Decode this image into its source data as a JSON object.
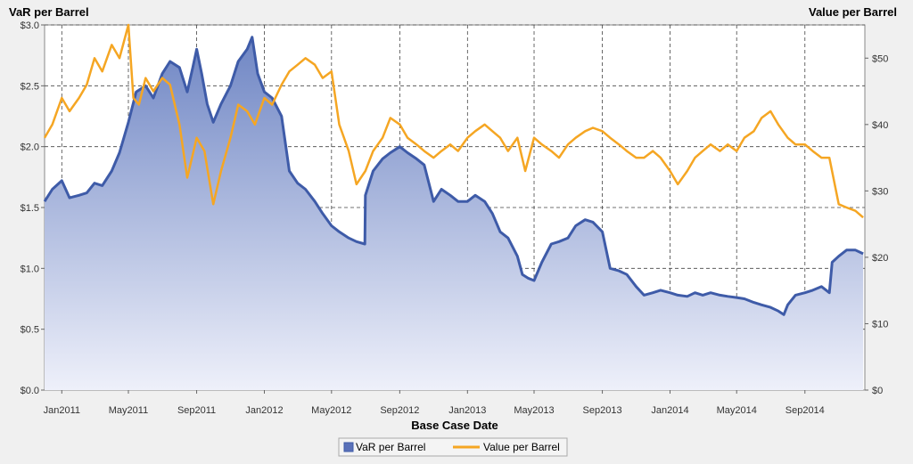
{
  "chart_data": {
    "type": "area",
    "xlabel": "Base Case Date",
    "ylabel_left": "VaR per Barrel",
    "ylabel_right": "Value per Barrel",
    "ylim_left": [
      0,
      3.0
    ],
    "ylim_right": [
      0,
      55
    ],
    "xlim": [
      "2010-12-01",
      "2014-12-18"
    ],
    "grid": true,
    "legend_position": "bottom-center",
    "y_ticks_left": [
      "$0.0",
      "$0.5",
      "$1.0",
      "$1.5",
      "$2.0",
      "$2.5",
      "$3.0"
    ],
    "y_ticks_right": [
      "$0",
      "$10",
      "$20",
      "$30",
      "$40",
      "$50"
    ],
    "x_ticks": [
      {
        "date": "2011-01-01",
        "label": "Jan2011"
      },
      {
        "date": "2011-05-01",
        "label": "May2011"
      },
      {
        "date": "2011-09-01",
        "label": "Sep2011"
      },
      {
        "date": "2012-01-01",
        "label": "Jan2012"
      },
      {
        "date": "2012-05-01",
        "label": "May2012"
      },
      {
        "date": "2012-09-01",
        "label": "Sep2012"
      },
      {
        "date": "2013-01-01",
        "label": "Jan2013"
      },
      {
        "date": "2013-05-01",
        "label": "May2013"
      },
      {
        "date": "2013-09-01",
        "label": "Sep2013"
      },
      {
        "date": "2014-01-01",
        "label": "Jan2014"
      },
      {
        "date": "2014-05-01",
        "label": "May2014"
      },
      {
        "date": "2014-09-01",
        "label": "Sep2014"
      }
    ],
    "series": [
      {
        "name": "VaR per Barrel",
        "axis": "left",
        "style": "area",
        "color": "#3e5ba8",
        "points": [
          [
            "2010-12-01",
            1.55
          ],
          [
            "2010-12-15",
            1.65
          ],
          [
            "2011-01-01",
            1.72
          ],
          [
            "2011-01-15",
            1.58
          ],
          [
            "2011-02-01",
            1.6
          ],
          [
            "2011-02-15",
            1.62
          ],
          [
            "2011-03-01",
            1.7
          ],
          [
            "2011-03-15",
            1.68
          ],
          [
            "2011-04-01",
            1.8
          ],
          [
            "2011-04-15",
            1.95
          ],
          [
            "2011-05-01",
            2.2
          ],
          [
            "2011-05-15",
            2.45
          ],
          [
            "2011-06-01",
            2.5
          ],
          [
            "2011-06-15",
            2.4
          ],
          [
            "2011-07-01",
            2.6
          ],
          [
            "2011-07-15",
            2.7
          ],
          [
            "2011-08-01",
            2.65
          ],
          [
            "2011-08-15",
            2.45
          ],
          [
            "2011-08-25",
            2.65
          ],
          [
            "2011-09-01",
            2.8
          ],
          [
            "2011-09-10",
            2.6
          ],
          [
            "2011-09-20",
            2.35
          ],
          [
            "2011-10-01",
            2.2
          ],
          [
            "2011-10-15",
            2.35
          ],
          [
            "2011-11-01",
            2.5
          ],
          [
            "2011-11-15",
            2.7
          ],
          [
            "2011-12-01",
            2.8
          ],
          [
            "2011-12-10",
            2.9
          ],
          [
            "2011-12-20",
            2.6
          ],
          [
            "2012-01-01",
            2.45
          ],
          [
            "2012-01-15",
            2.4
          ],
          [
            "2012-02-01",
            2.25
          ],
          [
            "2012-02-15",
            1.8
          ],
          [
            "2012-03-01",
            1.7
          ],
          [
            "2012-03-15",
            1.65
          ],
          [
            "2012-04-01",
            1.55
          ],
          [
            "2012-04-15",
            1.45
          ],
          [
            "2012-05-01",
            1.35
          ],
          [
            "2012-05-15",
            1.3
          ],
          [
            "2012-06-01",
            1.25
          ],
          [
            "2012-06-15",
            1.22
          ],
          [
            "2012-06-30",
            1.2
          ],
          [
            "2012-07-01",
            1.6
          ],
          [
            "2012-07-15",
            1.8
          ],
          [
            "2012-08-01",
            1.9
          ],
          [
            "2012-08-15",
            1.95
          ],
          [
            "2012-09-01",
            2.0
          ],
          [
            "2012-09-15",
            1.95
          ],
          [
            "2012-10-01",
            1.9
          ],
          [
            "2012-10-15",
            1.85
          ],
          [
            "2012-11-01",
            1.55
          ],
          [
            "2012-11-15",
            1.65
          ],
          [
            "2012-12-01",
            1.6
          ],
          [
            "2012-12-15",
            1.55
          ],
          [
            "2013-01-01",
            1.55
          ],
          [
            "2013-01-15",
            1.6
          ],
          [
            "2013-02-01",
            1.55
          ],
          [
            "2013-02-15",
            1.45
          ],
          [
            "2013-03-01",
            1.3
          ],
          [
            "2013-03-15",
            1.25
          ],
          [
            "2013-04-01",
            1.1
          ],
          [
            "2013-04-10",
            0.95
          ],
          [
            "2013-04-20",
            0.92
          ],
          [
            "2013-05-01",
            0.9
          ],
          [
            "2013-05-15",
            1.05
          ],
          [
            "2013-06-01",
            1.2
          ],
          [
            "2013-06-15",
            1.22
          ],
          [
            "2013-07-01",
            1.25
          ],
          [
            "2013-07-15",
            1.35
          ],
          [
            "2013-08-01",
            1.4
          ],
          [
            "2013-08-15",
            1.38
          ],
          [
            "2013-09-01",
            1.3
          ],
          [
            "2013-09-15",
            1.0
          ],
          [
            "2013-10-01",
            0.98
          ],
          [
            "2013-10-15",
            0.95
          ],
          [
            "2013-11-01",
            0.85
          ],
          [
            "2013-11-15",
            0.78
          ],
          [
            "2013-12-01",
            0.8
          ],
          [
            "2013-12-15",
            0.82
          ],
          [
            "2014-01-01",
            0.8
          ],
          [
            "2014-01-15",
            0.78
          ],
          [
            "2014-02-01",
            0.77
          ],
          [
            "2014-02-15",
            0.8
          ],
          [
            "2014-03-01",
            0.78
          ],
          [
            "2014-03-15",
            0.8
          ],
          [
            "2014-04-01",
            0.78
          ],
          [
            "2014-04-15",
            0.77
          ],
          [
            "2014-05-01",
            0.76
          ],
          [
            "2014-05-15",
            0.75
          ],
          [
            "2014-06-01",
            0.72
          ],
          [
            "2014-06-15",
            0.7
          ],
          [
            "2014-07-01",
            0.68
          ],
          [
            "2014-07-15",
            0.65
          ],
          [
            "2014-07-25",
            0.62
          ],
          [
            "2014-08-01",
            0.7
          ],
          [
            "2014-08-15",
            0.78
          ],
          [
            "2014-09-01",
            0.8
          ],
          [
            "2014-09-15",
            0.82
          ],
          [
            "2014-10-01",
            0.85
          ],
          [
            "2014-10-15",
            0.8
          ],
          [
            "2014-10-20",
            1.05
          ],
          [
            "2014-11-01",
            1.1
          ],
          [
            "2014-11-15",
            1.15
          ],
          [
            "2014-12-01",
            1.15
          ],
          [
            "2014-12-15",
            1.12
          ]
        ]
      },
      {
        "name": "Value per Barrel",
        "axis": "right",
        "style": "line",
        "color": "#f5a623",
        "points": [
          [
            "2010-12-01",
            38.0
          ],
          [
            "2010-12-15",
            40.0
          ],
          [
            "2011-01-01",
            44.0
          ],
          [
            "2011-01-15",
            42.0
          ],
          [
            "2011-02-01",
            44.0
          ],
          [
            "2011-02-15",
            46.0
          ],
          [
            "2011-03-01",
            50.0
          ],
          [
            "2011-03-15",
            48.0
          ],
          [
            "2011-04-01",
            52.0
          ],
          [
            "2011-04-15",
            50.0
          ],
          [
            "2011-05-01",
            55.0
          ],
          [
            "2011-05-10",
            44.0
          ],
          [
            "2011-05-20",
            43.0
          ],
          [
            "2011-06-01",
            47.0
          ],
          [
            "2011-06-15",
            45.0
          ],
          [
            "2011-07-01",
            47.0
          ],
          [
            "2011-07-15",
            46.0
          ],
          [
            "2011-08-01",
            40.0
          ],
          [
            "2011-08-15",
            32.0
          ],
          [
            "2011-09-01",
            38.0
          ],
          [
            "2011-09-15",
            36.0
          ],
          [
            "2011-10-01",
            28.0
          ],
          [
            "2011-10-15",
            33.0
          ],
          [
            "2011-11-01",
            38.0
          ],
          [
            "2011-11-15",
            43.0
          ],
          [
            "2011-12-01",
            42.0
          ],
          [
            "2011-12-15",
            40.0
          ],
          [
            "2012-01-01",
            44.0
          ],
          [
            "2012-01-15",
            43.0
          ],
          [
            "2012-02-01",
            46.0
          ],
          [
            "2012-02-15",
            48.0
          ],
          [
            "2012-03-01",
            49.0
          ],
          [
            "2012-03-15",
            50.0
          ],
          [
            "2012-04-01",
            49.0
          ],
          [
            "2012-04-15",
            47.0
          ],
          [
            "2012-05-01",
            48.0
          ],
          [
            "2012-05-15",
            40.0
          ],
          [
            "2012-06-01",
            36.0
          ],
          [
            "2012-06-15",
            31.0
          ],
          [
            "2012-07-01",
            33.0
          ],
          [
            "2012-07-15",
            36.0
          ],
          [
            "2012-08-01",
            38.0
          ],
          [
            "2012-08-15",
            41.0
          ],
          [
            "2012-09-01",
            40.0
          ],
          [
            "2012-09-15",
            38.0
          ],
          [
            "2012-10-01",
            37.0
          ],
          [
            "2012-10-15",
            36.0
          ],
          [
            "2012-11-01",
            35.0
          ],
          [
            "2012-11-15",
            36.0
          ],
          [
            "2012-12-01",
            37.0
          ],
          [
            "2012-12-15",
            36.0
          ],
          [
            "2013-01-01",
            38.0
          ],
          [
            "2013-01-15",
            39.0
          ],
          [
            "2013-02-01",
            40.0
          ],
          [
            "2013-02-15",
            39.0
          ],
          [
            "2013-03-01",
            38.0
          ],
          [
            "2013-03-15",
            36.0
          ],
          [
            "2013-04-01",
            38.0
          ],
          [
            "2013-04-15",
            33.0
          ],
          [
            "2013-05-01",
            38.0
          ],
          [
            "2013-05-15",
            37.0
          ],
          [
            "2013-06-01",
            36.0
          ],
          [
            "2013-06-15",
            35.0
          ],
          [
            "2013-07-01",
            37.0
          ],
          [
            "2013-07-15",
            38.0
          ],
          [
            "2013-08-01",
            39.0
          ],
          [
            "2013-08-15",
            39.5
          ],
          [
            "2013-09-01",
            39.0
          ],
          [
            "2013-09-15",
            38.0
          ],
          [
            "2013-10-01",
            37.0
          ],
          [
            "2013-10-15",
            36.0
          ],
          [
            "2013-11-01",
            35.0
          ],
          [
            "2013-11-15",
            35.0
          ],
          [
            "2013-12-01",
            36.0
          ],
          [
            "2013-12-15",
            35.0
          ],
          [
            "2014-01-01",
            33.0
          ],
          [
            "2014-01-15",
            31.0
          ],
          [
            "2014-02-01",
            33.0
          ],
          [
            "2014-02-15",
            35.0
          ],
          [
            "2014-03-01",
            36.0
          ],
          [
            "2014-03-15",
            37.0
          ],
          [
            "2014-04-01",
            36.0
          ],
          [
            "2014-04-15",
            37.0
          ],
          [
            "2014-05-01",
            36.0
          ],
          [
            "2014-05-15",
            38.0
          ],
          [
            "2014-06-01",
            39.0
          ],
          [
            "2014-06-15",
            41.0
          ],
          [
            "2014-07-01",
            42.0
          ],
          [
            "2014-07-15",
            40.0
          ],
          [
            "2014-08-01",
            38.0
          ],
          [
            "2014-08-15",
            37.0
          ],
          [
            "2014-09-01",
            37.0
          ],
          [
            "2014-09-15",
            36.0
          ],
          [
            "2014-10-01",
            35.0
          ],
          [
            "2014-10-15",
            35.0
          ],
          [
            "2014-11-01",
            28.0
          ],
          [
            "2014-11-15",
            27.5
          ],
          [
            "2014-12-01",
            27.0
          ],
          [
            "2014-12-15",
            26.0
          ]
        ]
      }
    ]
  }
}
